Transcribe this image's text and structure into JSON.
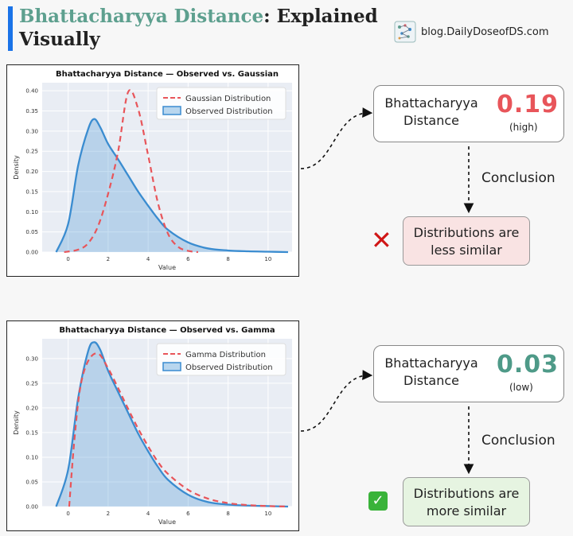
{
  "header": {
    "title_accent": "Bhattacharyya Distance",
    "title_rest": ": Explained",
    "title_line2": "Visually",
    "brand_text": "blog.DailyDoseofDS.com"
  },
  "panels": [
    {
      "distance_label_line1": "Bhattacharyya",
      "distance_label_line2": "Distance",
      "distance_value": "0.19",
      "distance_note": "(high)",
      "value_color": "#e8555a",
      "conclusion_label": "Conclusion",
      "conclusion_line1": "Distributions are",
      "conclusion_line2": "less similar",
      "result_icon": "cross-icon"
    },
    {
      "distance_label_line1": "Bhattacharyya",
      "distance_label_line2": "Distance",
      "distance_value": "0.03",
      "distance_note": "(low)",
      "value_color": "#4e9a88",
      "conclusion_label": "Conclusion",
      "conclusion_line1": "Distributions are",
      "conclusion_line2": "more similar",
      "result_icon": "check-icon"
    }
  ],
  "chart_data": [
    {
      "type": "area",
      "title": "Bhattacharyya Distance — Observed  vs. Gaussian",
      "xlabel": "Value",
      "ylabel": "Density",
      "xlim": [
        -1.3,
        11.2
      ],
      "ylim": [
        0,
        0.42
      ],
      "xticks": [
        0,
        2,
        4,
        6,
        8,
        10
      ],
      "yticks": [
        0.0,
        0.05,
        0.1,
        0.15,
        0.2,
        0.25,
        0.3,
        0.35,
        0.4
      ],
      "ytick_labels": [
        "0.00",
        "0.05",
        "0.10",
        "0.15",
        "0.20",
        "0.25",
        "0.30",
        "0.35",
        "0.40"
      ],
      "grid": true,
      "legend_position": "top-right",
      "series": [
        {
          "name": "Gaussian Distribution",
          "style": "dashed",
          "color": "#e8555a",
          "x": [
            -0.2,
            0.5,
            1.0,
            1.5,
            2.0,
            2.5,
            3.0,
            3.5,
            4.0,
            4.5,
            5.0,
            5.5,
            6.0,
            6.5
          ],
          "y": [
            0.0,
            0.006,
            0.022,
            0.065,
            0.145,
            0.25,
            0.397,
            0.355,
            0.24,
            0.12,
            0.045,
            0.013,
            0.003,
            0.0
          ]
        },
        {
          "name": "Observed Distribution",
          "style": "filled",
          "color": "#3a8cd0",
          "x": [
            -0.6,
            0.0,
            0.5,
            1.0,
            1.3,
            1.6,
            2.0,
            2.5,
            3.0,
            3.5,
            4.0,
            4.5,
            5.0,
            6.0,
            7.0,
            8.0,
            9.0,
            10.0,
            11.0
          ],
          "y": [
            0.0,
            0.07,
            0.215,
            0.305,
            0.33,
            0.31,
            0.268,
            0.23,
            0.19,
            0.15,
            0.115,
            0.082,
            0.055,
            0.024,
            0.009,
            0.004,
            0.002,
            0.001,
            0.0
          ]
        }
      ]
    },
    {
      "type": "area",
      "title": "Bhattacharyya Distance — Observed  vs. Gamma",
      "xlabel": "Value",
      "ylabel": "Density",
      "xlim": [
        -1.3,
        11.2
      ],
      "ylim": [
        0,
        0.34
      ],
      "xticks": [
        0,
        2,
        4,
        6,
        8,
        10
      ],
      "yticks": [
        0.0,
        0.05,
        0.1,
        0.15,
        0.2,
        0.25,
        0.3
      ],
      "ytick_labels": [
        "0.00",
        "0.05",
        "0.10",
        "0.15",
        "0.20",
        "0.25",
        "0.30"
      ],
      "grid": true,
      "legend_position": "top-right",
      "series": [
        {
          "name": "Gamma Distribution",
          "style": "dashed",
          "color": "#e8555a",
          "x": [
            0.05,
            0.3,
            0.6,
            1.0,
            1.5,
            2.0,
            2.5,
            3.0,
            3.5,
            4.0,
            4.5,
            5.0,
            6.0,
            7.0,
            8.0,
            9.0,
            10.0,
            11.0
          ],
          "y": [
            0.0,
            0.13,
            0.24,
            0.295,
            0.31,
            0.28,
            0.24,
            0.198,
            0.158,
            0.122,
            0.09,
            0.066,
            0.034,
            0.016,
            0.007,
            0.003,
            0.001,
            0.0
          ]
        },
        {
          "name": "Observed Distribution",
          "style": "filled",
          "color": "#3a8cd0",
          "x": [
            -0.6,
            0.0,
            0.5,
            1.0,
            1.3,
            1.6,
            2.0,
            2.5,
            3.0,
            3.5,
            4.0,
            4.5,
            5.0,
            6.0,
            7.0,
            8.0,
            9.0,
            10.0,
            11.0
          ],
          "y": [
            0.0,
            0.075,
            0.22,
            0.315,
            0.333,
            0.318,
            0.275,
            0.232,
            0.19,
            0.148,
            0.112,
            0.08,
            0.054,
            0.024,
            0.009,
            0.004,
            0.002,
            0.001,
            0.0
          ]
        }
      ]
    }
  ]
}
